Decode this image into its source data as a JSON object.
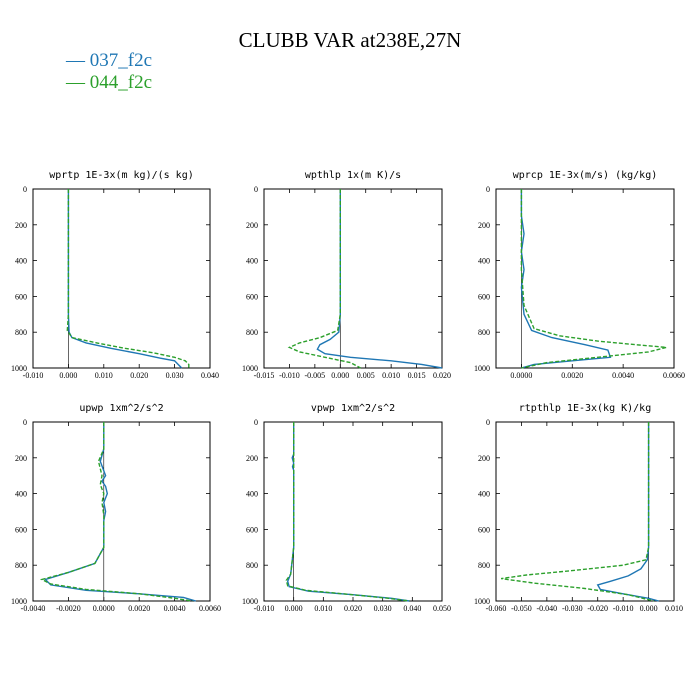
{
  "title": "CLUBB VAR at238E,27N",
  "legend": [
    {
      "label": "037_f2c",
      "color": "#1f77b4",
      "dash": "solid"
    },
    {
      "label": "044_f2c",
      "color": "#2ca02c",
      "dash": "dashed"
    }
  ],
  "chart_data": [
    {
      "type": "line",
      "title": "wprtp  1E-3x(m kg)/(s kg)",
      "xlim": [
        -0.01,
        0.04
      ],
      "ylim": [
        0,
        1000
      ],
      "y_inverted": true,
      "xticks": [
        "-0.010",
        "0.000",
        "0.010",
        "0.020",
        "0.030",
        "0.040"
      ],
      "yticks": [
        "0",
        "200",
        "400",
        "600",
        "800",
        "1000"
      ],
      "series": [
        {
          "name": "037_f2c",
          "x": [
            0.0,
            0.0,
            0.0,
            0.0002,
            0.001,
            0.005,
            0.012,
            0.02,
            0.026,
            0.03,
            0.031,
            0.032
          ],
          "y": [
            0,
            400,
            700,
            800,
            830,
            860,
            890,
            920,
            945,
            960,
            980,
            1000
          ]
        },
        {
          "name": "044_f2c",
          "x": [
            0.0,
            0.0,
            0.0,
            -0.0003,
            0.001,
            0.008,
            0.016,
            0.024,
            0.03,
            0.033,
            0.034,
            0.034
          ],
          "y": [
            0,
            400,
            700,
            790,
            830,
            860,
            890,
            915,
            940,
            960,
            980,
            1000
          ]
        }
      ]
    },
    {
      "type": "line",
      "title": "wpthlp  1x(m K)/s",
      "xlim": [
        -0.015,
        0.02
      ],
      "ylim": [
        0,
        1000
      ],
      "y_inverted": true,
      "xticks": [
        "-0.015",
        "-0.010",
        "-0.005",
        "0.000",
        "0.005",
        "0.010",
        "0.015",
        "0.020"
      ],
      "yticks": [
        "0",
        "200",
        "400",
        "600",
        "800",
        "1000"
      ],
      "series": [
        {
          "name": "037_f2c",
          "x": [
            0.0,
            0.0,
            0.0,
            -0.0003,
            -0.002,
            -0.004,
            -0.0045,
            -0.003,
            0.002,
            0.01,
            0.016,
            0.02
          ],
          "y": [
            0,
            400,
            700,
            800,
            840,
            870,
            895,
            920,
            940,
            960,
            980,
            1000
          ]
        },
        {
          "name": "044_f2c",
          "x": [
            0.0,
            0.0,
            0.0,
            -0.0005,
            -0.004,
            -0.008,
            -0.01,
            -0.008,
            -0.003,
            0.002,
            0.004
          ],
          "y": [
            0,
            400,
            700,
            790,
            830,
            860,
            885,
            910,
            940,
            970,
            1000
          ]
        }
      ]
    },
    {
      "type": "line",
      "title": "wprcp  1E-3x(m/s) (kg/kg)",
      "xlim": [
        -0.001,
        0.006
      ],
      "ylim": [
        0,
        1000
      ],
      "y_inverted": true,
      "xticks": [
        "0.0000",
        "0.0020",
        "0.0040",
        "0.0060"
      ],
      "yticks": [
        "0",
        "200",
        "400",
        "600",
        "800",
        "1000"
      ],
      "series": [
        {
          "name": "037_f2c",
          "x": [
            0.0,
            0.0,
            0.0001,
            0.0,
            0.0001,
            0.0,
            0.0001,
            0.0004,
            0.0012,
            0.0025,
            0.0034,
            0.0035,
            0.002,
            0.0005,
            0.0
          ],
          "y": [
            0,
            150,
            250,
            350,
            450,
            550,
            700,
            790,
            830,
            870,
            900,
            940,
            960,
            980,
            1000
          ]
        },
        {
          "name": "044_f2c",
          "x": [
            0.0,
            0.0,
            0.0,
            0.0,
            0.0,
            0.0001,
            0.0005,
            0.0015,
            0.003,
            0.0045,
            0.0057,
            0.005,
            0.003,
            0.001,
            0.0
          ],
          "y": [
            0,
            150,
            250,
            350,
            450,
            650,
            780,
            820,
            850,
            870,
            885,
            910,
            940,
            970,
            1000
          ]
        }
      ]
    },
    {
      "type": "line",
      "title": "upwp  1xm^2/s^2",
      "xlim": [
        -0.004,
        0.006
      ],
      "ylim": [
        0,
        1000
      ],
      "y_inverted": true,
      "xticks": [
        "-0.0040",
        "-0.0020",
        "0.0000",
        "0.0020",
        "0.0040",
        "0.0060"
      ],
      "yticks": [
        "0",
        "200",
        "400",
        "600",
        "800",
        "1000"
      ],
      "series": [
        {
          "name": "037_f2c",
          "x": [
            0.0,
            0.0,
            -0.0002,
            0.0001,
            -0.0001,
            0.0001,
            0.0002,
            0.0,
            0.0001,
            0.0,
            0.0,
            -0.0005,
            -0.002,
            -0.0033,
            -0.003,
            -0.001,
            0.002,
            0.0045,
            0.0052
          ],
          "y": [
            0,
            150,
            220,
            300,
            330,
            360,
            400,
            450,
            500,
            550,
            700,
            790,
            840,
            880,
            910,
            940,
            960,
            980,
            1000
          ]
        },
        {
          "name": "044_f2c",
          "x": [
            0.0,
            0.0,
            -0.0003,
            -0.0001,
            -0.0002,
            0.0,
            -0.0001,
            0.0,
            0.0,
            -0.0005,
            -0.002,
            -0.0035,
            -0.003,
            -0.001,
            0.002,
            0.004,
            0.005
          ],
          "y": [
            0,
            150,
            220,
            300,
            350,
            400,
            450,
            520,
            700,
            790,
            840,
            880,
            905,
            935,
            960,
            985,
            1000
          ]
        }
      ]
    },
    {
      "type": "line",
      "title": "vpwp  1xm^2/s^2",
      "xlim": [
        -0.01,
        0.05
      ],
      "ylim": [
        0,
        1000
      ],
      "y_inverted": true,
      "xticks": [
        "-0.010",
        "0.000",
        "0.010",
        "0.020",
        "0.030",
        "0.040",
        "0.050"
      ],
      "yticks": [
        "0",
        "200",
        "400",
        "600",
        "800",
        "1000"
      ],
      "series": [
        {
          "name": "037_f2c",
          "x": [
            0.0,
            0.0,
            -0.0005,
            0.0,
            -0.0004,
            0.0,
            0.0,
            -0.001,
            -0.002,
            -0.0015,
            0.005,
            0.02,
            0.033,
            0.039
          ],
          "y": [
            0,
            180,
            200,
            230,
            250,
            270,
            700,
            850,
            890,
            920,
            945,
            965,
            985,
            1000
          ]
        },
        {
          "name": "044_f2c",
          "x": [
            0.0,
            0.0,
            0.0,
            -0.001,
            -0.0025,
            -0.002,
            0.004,
            0.018,
            0.032,
            0.039
          ],
          "y": [
            0,
            200,
            700,
            850,
            885,
            915,
            940,
            962,
            985,
            1000
          ]
        }
      ]
    },
    {
      "type": "line",
      "title": "rtpthlp  1E-3x(kg K)/kg",
      "xlim": [
        -0.06,
        0.01
      ],
      "ylim": [
        0,
        1000
      ],
      "y_inverted": true,
      "xticks": [
        "-0.060",
        "-0.050",
        "-0.040",
        "-0.030",
        "-0.020",
        "-0.010",
        "0.000",
        "0.010"
      ],
      "yticks": [
        "0",
        "200",
        "400",
        "600",
        "800",
        "1000"
      ],
      "series": [
        {
          "name": "037_f2c",
          "x": [
            0.0,
            0.0,
            0.0,
            -0.0005,
            -0.003,
            -0.008,
            -0.015,
            -0.02,
            -0.019,
            -0.01,
            0.0,
            0.004
          ],
          "y": [
            0,
            400,
            700,
            770,
            820,
            860,
            890,
            910,
            935,
            960,
            985,
            1000
          ]
        },
        {
          "name": "044_f2c",
          "x": [
            0.0,
            0.0,
            0.0,
            -0.001,
            -0.01,
            -0.03,
            -0.048,
            -0.058,
            -0.045,
            -0.025,
            -0.008,
            0.002
          ],
          "y": [
            0,
            400,
            700,
            770,
            800,
            830,
            855,
            875,
            900,
            930,
            965,
            1000
          ]
        }
      ]
    }
  ]
}
